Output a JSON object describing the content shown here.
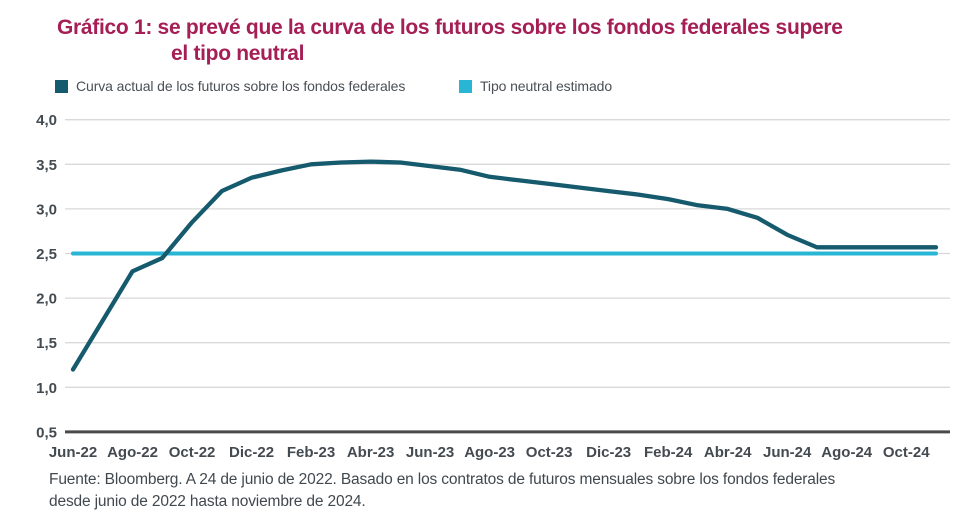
{
  "title": {
    "line1": "Gráfico 1: se prevé que la curva de los futuros sobre los fondos federales supere",
    "line2": "el tipo neutral",
    "color": "#A51E55"
  },
  "legend": {
    "items": [
      {
        "label": "Curva actual de los futuros sobre los fondos federales",
        "color": "#165A6E"
      },
      {
        "label": "Tipo neutral estimado",
        "color": "#29B6D5"
      }
    ]
  },
  "source_note": {
    "lines": [
      "Fuente: Bloomberg. A 24 de junio de 2022. Basado en los contratos de futuros mensuales sobre los fondos federales",
      "desde junio de 2022 hasta noviembre de 2024."
    ]
  },
  "chart_data": {
    "type": "line",
    "title": "Gráfico 1: se prevé que la curva de los futuros sobre los fondos federales supere el tipo neutral",
    "xlabel": "",
    "ylabel": "",
    "ylim": [
      0.5,
      4.0
    ],
    "grid": "horizontal",
    "legend_position": "top",
    "decimal_separator": ",",
    "categories": [
      "Jun-22",
      "Jul-22",
      "Ago-22",
      "Sep-22",
      "Oct-22",
      "Nov-22",
      "Dic-22",
      "Ene-23",
      "Feb-23",
      "Mar-23",
      "Abr-23",
      "May-23",
      "Jun-23",
      "Jul-23",
      "Ago-23",
      "Sep-23",
      "Oct-23",
      "Nov-23",
      "Dic-23",
      "Ene-24",
      "Feb-24",
      "Mar-24",
      "Abr-24",
      "May-24",
      "Jun-24",
      "Jul-24",
      "Ago-24",
      "Sep-24",
      "Oct-24",
      "Nov-24"
    ],
    "x_tick_labels": [
      "Jun-22",
      "Ago-22",
      "Oct-22",
      "Dic-22",
      "Feb-23",
      "Abr-23",
      "Jun-23",
      "Ago-23",
      "Oct-23",
      "Dic-23",
      "Feb-24",
      "Abr-24",
      "Jun-24",
      "Ago-24",
      "Oct-24"
    ],
    "x_tick_every": 2,
    "y_ticks": [
      {
        "value": 4.0,
        "label": "4,0"
      },
      {
        "value": 3.5,
        "label": "3,5"
      },
      {
        "value": 3.0,
        "label": "3,0"
      },
      {
        "value": 2.5,
        "label": "2,5"
      },
      {
        "value": 2.0,
        "label": "2,0"
      },
      {
        "value": 1.5,
        "label": "1,5"
      },
      {
        "value": 1.0,
        "label": "1,0"
      },
      {
        "value": 0.5,
        "label": "0,5"
      }
    ],
    "series": [
      {
        "name": "Curva actual de los futuros sobre los fondos federales",
        "color": "#165A6E",
        "values": [
          1.2,
          1.75,
          2.3,
          2.45,
          2.85,
          3.2,
          3.35,
          3.43,
          3.5,
          3.52,
          3.53,
          3.52,
          3.48,
          3.44,
          3.36,
          3.32,
          3.28,
          3.24,
          3.2,
          3.16,
          3.11,
          3.04,
          3.0,
          2.9,
          2.71,
          2.57,
          2.57,
          2.57,
          2.57,
          2.57
        ]
      },
      {
        "name": "Tipo neutral estimado",
        "color": "#29B6D5",
        "constant_value": 2.5
      }
    ],
    "colors": {
      "gridline": "#D9D9D9",
      "axis": "#4A4A4A",
      "tick_text": "#434A50"
    }
  }
}
